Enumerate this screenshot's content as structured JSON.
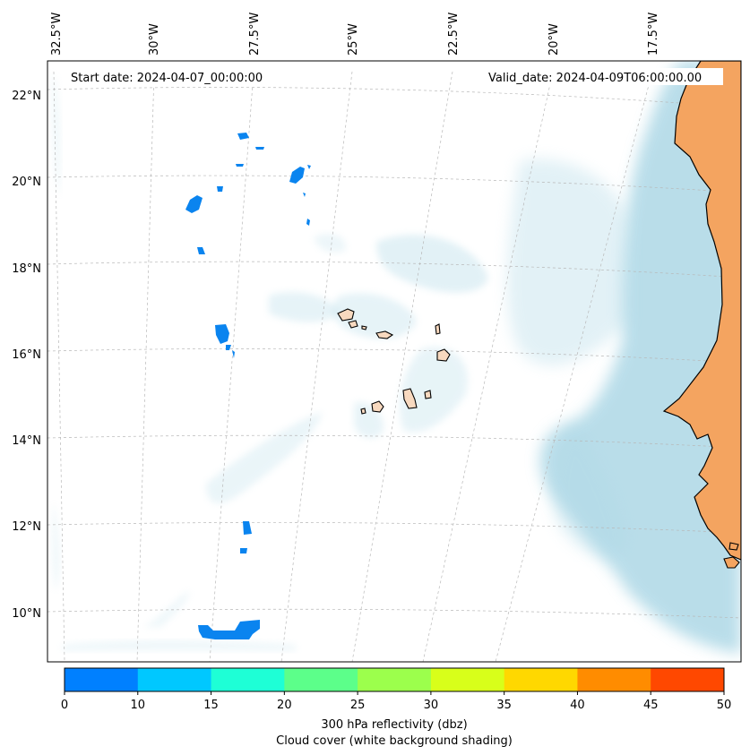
{
  "map": {
    "start_label": "Start date: 2024-04-07_00:00:00",
    "valid_label": "Valid_date: 2024-04-09T06:00:00.00",
    "lon_labels": [
      "32.5°W",
      "30°W",
      "27.5°W",
      "25°W",
      "22.5°W",
      "20°W",
      "17.5°W"
    ],
    "lat_labels": [
      "22°N",
      "20°N",
      "18°N",
      "16°N",
      "14°N",
      "12°N",
      "10°N"
    ],
    "land_color": "#f4a460",
    "cloud_color": "#add8e6",
    "reflectivity_color": "#0a84ef"
  },
  "colorbar": {
    "ticks": [
      "0",
      "10",
      "15",
      "20",
      "25",
      "30",
      "35",
      "40",
      "45",
      "50"
    ],
    "colors": [
      "#0080ff",
      "#00c8ff",
      "#1effd6",
      "#5cff8a",
      "#9cff4c",
      "#d8ff1a",
      "#ffd800",
      "#ff8c00",
      "#ff4800"
    ],
    "label_line1": "300 hPa reflectivity (dbz)",
    "label_line2": "Cloud cover (white background shading)"
  }
}
